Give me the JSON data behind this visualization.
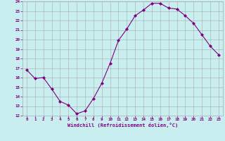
{
  "x": [
    0,
    1,
    2,
    3,
    4,
    5,
    6,
    7,
    8,
    9,
    10,
    11,
    12,
    13,
    14,
    15,
    16,
    17,
    18,
    19,
    20,
    21,
    22,
    23
  ],
  "y": [
    16.8,
    15.9,
    16.0,
    14.8,
    13.5,
    13.1,
    12.2,
    12.5,
    13.8,
    15.4,
    17.5,
    19.9,
    21.1,
    22.5,
    23.1,
    23.8,
    23.8,
    23.3,
    23.2,
    22.5,
    21.7,
    20.5,
    19.3,
    18.4
  ],
  "line_color": "#800080",
  "marker": "D",
  "marker_size": 2,
  "bg_color": "#c8eef0",
  "grid_color": "#aaaaaa",
  "xlabel": "Windchill (Refroidissement éolien,°C)",
  "xlabel_color": "#800080",
  "tick_color": "#800080",
  "ylim": [
    12,
    24
  ],
  "xlim": [
    -0.5,
    23.5
  ],
  "yticks": [
    12,
    13,
    14,
    15,
    16,
    17,
    18,
    19,
    20,
    21,
    22,
    23,
    24
  ],
  "xticks": [
    0,
    1,
    2,
    3,
    4,
    5,
    6,
    7,
    8,
    9,
    10,
    11,
    12,
    13,
    14,
    15,
    16,
    17,
    18,
    19,
    20,
    21,
    22,
    23
  ]
}
